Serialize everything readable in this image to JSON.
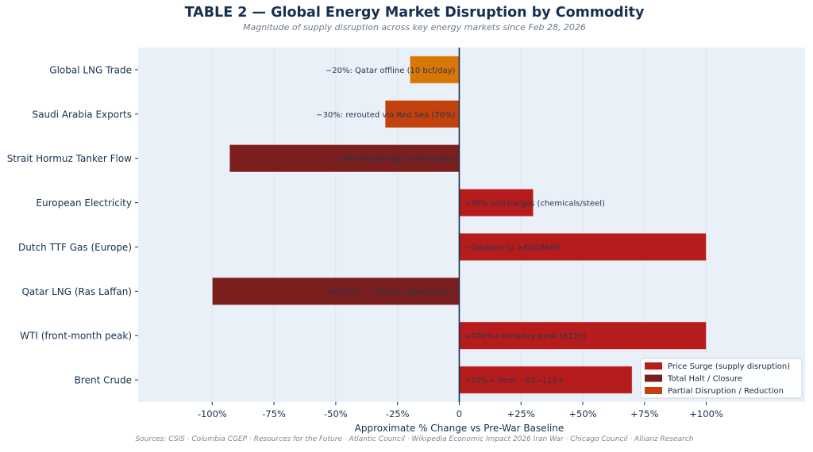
{
  "header": {
    "title": "TABLE 2 — Global Energy Market Disruption by Commodity",
    "subtitle": "Magnitude of supply disruption across key energy markets since Feb 28, 2026"
  },
  "footer": {
    "sources": "Sources: CSIS · Columbia CGEP · Resources for the Future · Atlantic Council · Wikipedia Economic Impact 2026 Iran War · Chicago Council · Allianz Research"
  },
  "colors": {
    "price_surge": "#B71C1C",
    "total_halt": "#7B1E1E",
    "partial": "#C2410C",
    "lng_trade": "#D97706",
    "plot_bg": "#E9F0F8",
    "text": "#16304f",
    "zero_line": "#16304f"
  },
  "chart_data": {
    "type": "bar",
    "orientation": "horizontal",
    "title": "TABLE 2 — Global Energy Market Disruption by Commodity",
    "subtitle": "Magnitude of supply disruption across key energy markets since Feb 28, 2026",
    "xlabel": "Approximate % Change vs Pre-War Baseline",
    "ylabel": "",
    "xlim": [
      -130,
      140
    ],
    "xticks": [
      -100,
      -75,
      -50,
      -25,
      0,
      25,
      50,
      75,
      100
    ],
    "xtick_labels": [
      "-100%",
      "-75%",
      "-50%",
      "-25%",
      "0",
      "+25%",
      "+50%",
      "+75%",
      "+100%"
    ],
    "grid": "vertical",
    "categories": [
      "Brent Crude",
      "WTI (front-month peak)",
      "Qatar LNG (Ras Laffan)",
      "Dutch TTF Gas (Europe)",
      "European Electricity",
      "Strait Hormuz Tanker Flow",
      "Saudi Arabia Exports",
      "Global LNG Trade"
    ],
    "values": [
      70,
      100,
      -100,
      100,
      30,
      -93,
      -30,
      -20
    ],
    "bar_types": [
      "price_surge",
      "price_surge",
      "total_halt",
      "price_surge",
      "price_surge",
      "total_halt",
      "partial",
      "lng_trade"
    ],
    "annotations": [
      "+70%+ from ~63→113+",
      "+100%+ intraday peak ($120)",
      "HALTED — military strikes Mar 2",
      "~Doubled to >€60/MWh",
      "+30% surcharges (chemicals/steel)",
      "~100→single-digit tankers/day",
      "−30%: rerouted via Red Sea (70%)",
      "−20%: Qatar offline (10 bcf/day)"
    ],
    "legend": {
      "position": "bottom-right",
      "entries": [
        {
          "label": "Price Surge (supply disruption)",
          "type": "price_surge"
        },
        {
          "label": "Total Halt / Closure",
          "type": "total_halt"
        },
        {
          "label": "Partial Disruption / Reduction",
          "type": "partial"
        }
      ]
    }
  }
}
